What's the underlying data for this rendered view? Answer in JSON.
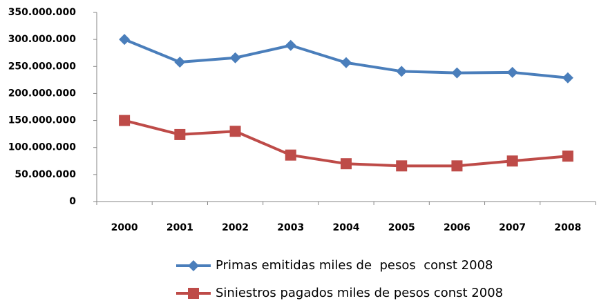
{
  "chart_data": {
    "type": "line",
    "categories": [
      "2000",
      "2001",
      "2002",
      "2003",
      "2004",
      "2005",
      "2006",
      "2007",
      "2008"
    ],
    "series": [
      {
        "name": "Primas emitidas miles de  pesos  const 2008",
        "color": "#4a7ebb",
        "marker": "diamond",
        "values": [
          300000000,
          258000000,
          266000000,
          289000000,
          257000000,
          241000000,
          238000000,
          239000000,
          229000000
        ]
      },
      {
        "name": "Siniestros pagados miles de pesos const 2008",
        "color": "#be4b48",
        "marker": "square",
        "values": [
          150000000,
          124000000,
          130000000,
          86000000,
          70000000,
          66000000,
          66000000,
          75000000,
          84000000
        ]
      }
    ],
    "ylim": [
      0,
      350000000
    ],
    "yticks": [
      0,
      {
        "value": 50000000,
        "label": "50.000.000"
      },
      {
        "value": 100000000,
        "label": "100.000.000"
      },
      {
        "value": 150000000,
        "label": "150.000.000"
      },
      {
        "value": 200000000,
        "label": "200.000.000"
      },
      {
        "value": 250000000,
        "label": "250.000.000"
      },
      {
        "value": 300000000,
        "label": "300.000.000"
      },
      {
        "value": 350000000,
        "label": "350.000.000"
      }
    ],
    "grid": false,
    "legend": "bottom"
  }
}
